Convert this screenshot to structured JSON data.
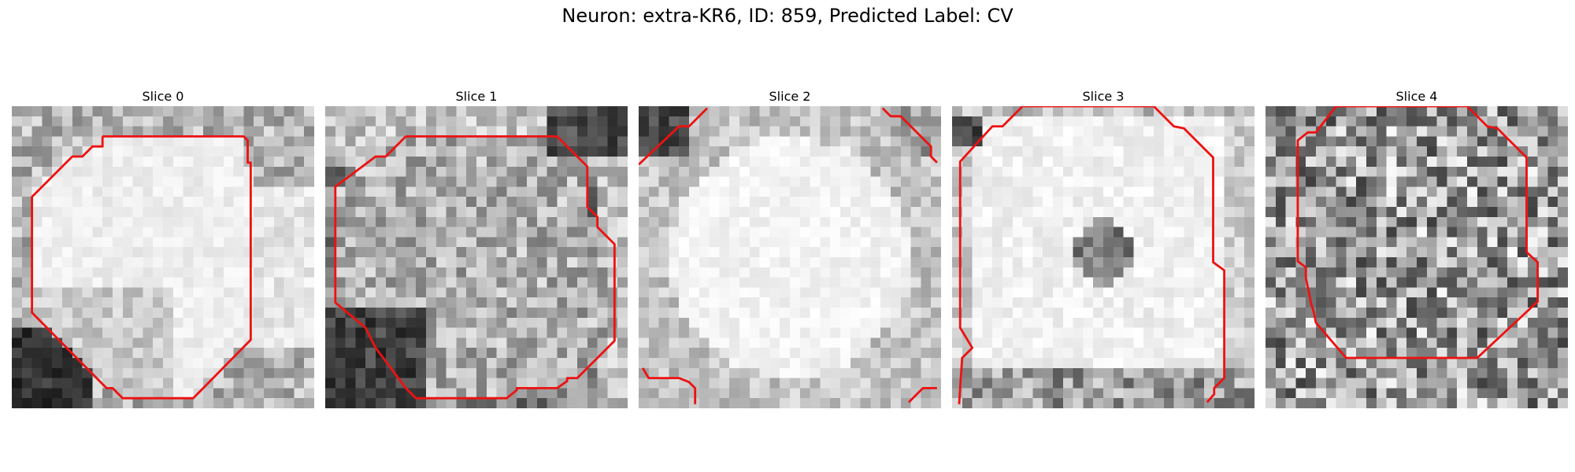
{
  "figure": {
    "title": "Neuron: extra-KR6, ID: 859, Predicted Label: CV"
  },
  "contour_color": "#ee1111",
  "grid_size": 30,
  "panels": [
    {
      "title": "Slice 0",
      "style": "bright-center",
      "seed": 11,
      "contours": [
        [
          [
            9,
            3
          ],
          [
            23,
            3
          ],
          [
            23.4,
            3.4
          ],
          [
            23.4,
            5.6
          ],
          [
            23.7,
            5.6
          ],
          [
            23.7,
            23.2
          ],
          [
            18,
            29
          ],
          [
            11,
            29
          ],
          [
            10,
            28
          ],
          [
            9.4,
            28
          ],
          [
            2,
            20.5
          ],
          [
            2,
            9
          ],
          [
            6,
            5
          ],
          [
            7,
            5
          ],
          [
            8,
            4
          ],
          [
            9,
            4
          ],
          [
            9,
            3
          ]
        ]
      ]
    },
    {
      "title": "Slice 1",
      "style": "gray-textured",
      "seed": 23,
      "contours": [
        [
          [
            8,
            3
          ],
          [
            23,
            3
          ],
          [
            26,
            6
          ],
          [
            26,
            10
          ],
          [
            27,
            11
          ],
          [
            27,
            12
          ],
          [
            28.7,
            13.7
          ],
          [
            28.7,
            23.3
          ],
          [
            25,
            27
          ],
          [
            24,
            27
          ],
          [
            24,
            27.3
          ],
          [
            23,
            28
          ],
          [
            19,
            28
          ],
          [
            19,
            28.2
          ],
          [
            18,
            29
          ],
          [
            9,
            29
          ],
          [
            8,
            28
          ],
          [
            5,
            24
          ],
          [
            4,
            22
          ],
          [
            1,
            19.5
          ],
          [
            1,
            8
          ],
          [
            5,
            5
          ],
          [
            6,
            5
          ],
          [
            8,
            3
          ]
        ]
      ]
    },
    {
      "title": "Slice 2",
      "style": "bright-full",
      "seed": 37,
      "contours": [
        [
          [
            0,
            5.8
          ],
          [
            4,
            2
          ],
          [
            5,
            2
          ],
          [
            6.8,
            0.2
          ]
        ],
        [
          [
            24.2,
            0.2
          ],
          [
            25,
            1
          ],
          [
            26,
            1
          ],
          [
            29,
            4
          ],
          [
            29,
            5
          ],
          [
            29.6,
            5.6
          ]
        ],
        [
          [
            0.4,
            26
          ],
          [
            1,
            27
          ],
          [
            4,
            27
          ],
          [
            5,
            27.4
          ],
          [
            5.6,
            28
          ],
          [
            5.6,
            29.6
          ]
        ],
        [
          [
            26.8,
            29.4
          ],
          [
            28.2,
            28
          ],
          [
            29.6,
            28
          ]
        ]
      ]
    },
    {
      "title": "Slice 3",
      "style": "bright-dark-spot",
      "seed": 41,
      "contours": [
        [
          [
            0.7,
            29.6
          ],
          [
            0.8,
            28
          ],
          [
            1,
            25
          ],
          [
            2,
            24
          ],
          [
            0.8,
            22
          ],
          [
            0.8,
            5.5
          ],
          [
            4,
            2
          ],
          [
            5,
            2
          ],
          [
            7,
            0
          ],
          [
            20,
            0
          ],
          [
            22,
            2
          ],
          [
            23,
            2.2
          ],
          [
            23.4,
            2.6
          ],
          [
            25.9,
            5.1
          ],
          [
            25.9,
            15.5
          ],
          [
            27,
            16.3
          ],
          [
            27,
            27
          ],
          [
            26,
            28
          ],
          [
            26,
            28.6
          ],
          [
            25.3,
            29.4
          ]
        ]
      ]
    },
    {
      "title": "Slice 4",
      "style": "noisy-gray",
      "seed": 53,
      "contours": [
        [
          [
            7,
            0
          ],
          [
            20,
            0
          ],
          [
            22,
            2
          ],
          [
            23,
            2.2
          ],
          [
            23.6,
            2.8
          ],
          [
            25.9,
            5.1
          ],
          [
            25.9,
            14.5
          ],
          [
            27,
            15.5
          ],
          [
            27,
            19.4
          ],
          [
            21,
            25
          ],
          [
            8,
            25
          ],
          [
            5,
            21.5
          ],
          [
            4.8,
            20.5
          ],
          [
            4.5,
            19.5
          ],
          [
            4,
            17
          ],
          [
            4,
            16
          ],
          [
            3.2,
            15.4
          ],
          [
            3.2,
            3.4
          ],
          [
            4.2,
            2.6
          ],
          [
            5,
            2.6
          ],
          [
            7,
            0
          ]
        ]
      ]
    }
  ]
}
